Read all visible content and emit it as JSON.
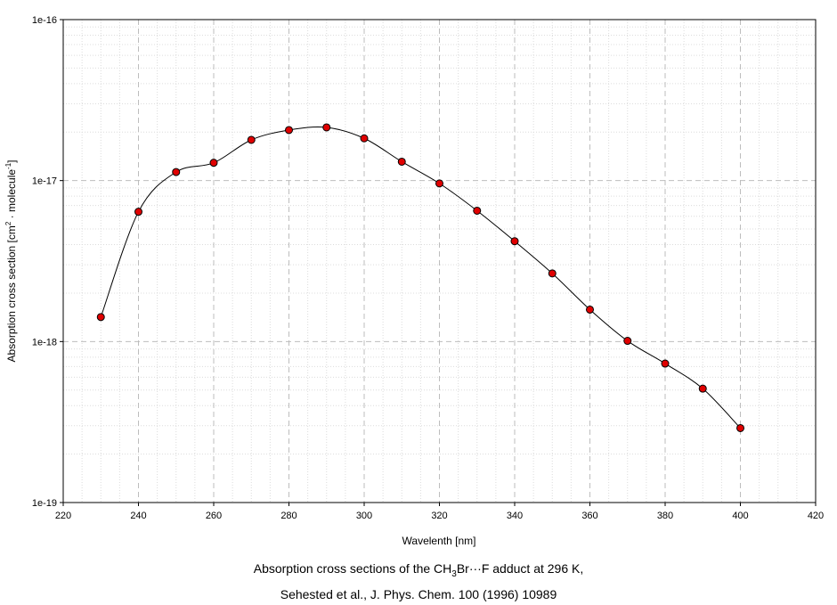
{
  "chart_data": {
    "type": "line",
    "xlabel": "Wavelenth [nm]",
    "ylabel": "Absorption cross section [cm² · molecule⁻¹]",
    "xlim": [
      220,
      420
    ],
    "ylim": [
      1e-19,
      1e-16
    ],
    "yscale": "log",
    "grid": true,
    "x_ticks": [
      220,
      240,
      260,
      280,
      300,
      320,
      340,
      360,
      380,
      400,
      420
    ],
    "y_ticks": [
      1e-19,
      1e-18,
      1e-17,
      1e-16
    ],
    "y_tick_labels": [
      "1e-19",
      "1e-18",
      "1e-17",
      "1e-16"
    ],
    "marker_color": "#e00000",
    "line_color": "#000000",
    "series": [
      {
        "x": [
          230,
          240,
          250,
          260,
          270,
          280,
          290,
          300,
          310,
          320,
          330,
          340,
          350,
          360,
          370,
          380,
          390,
          400
        ],
        "y": [
          1.42e-18,
          6.4e-18,
          1.13e-17,
          1.29e-17,
          1.79e-17,
          2.06e-17,
          2.14e-17,
          1.83e-17,
          1.31e-17,
          9.6e-18,
          6.5e-18,
          4.2e-18,
          2.65e-18,
          1.58e-18,
          1.01e-18,
          7.3e-19,
          5.1e-19,
          2.9e-19
        ]
      }
    ]
  },
  "caption": {
    "line1_pre": "Absorption cross sections of the CH",
    "line1_sub": "3",
    "line1_post": "Br···F adduct at 296 K,",
    "line2": "Sehested et al., J. Phys. Chem. 100 (1996) 10989"
  }
}
